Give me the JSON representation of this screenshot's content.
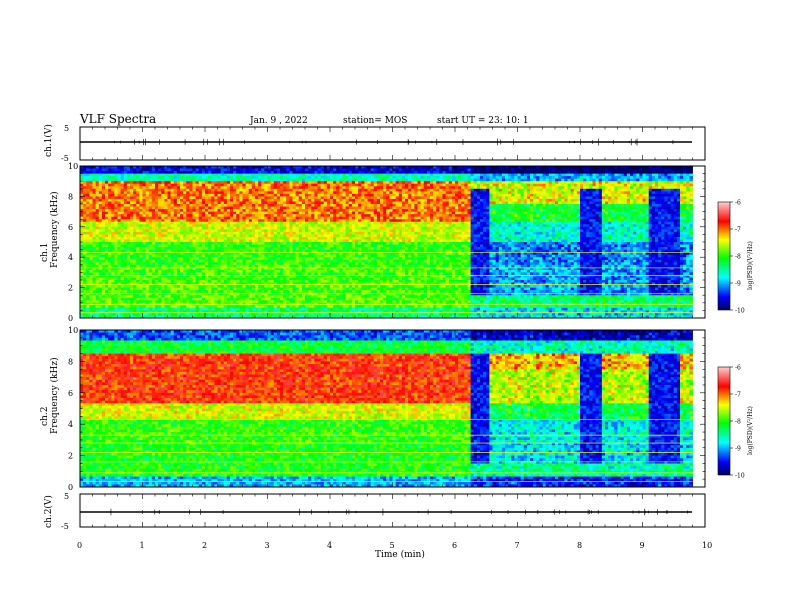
{
  "header": {
    "title": "VLF Spectra",
    "date": "Jan. 9 , 2022",
    "station": "station= MOS",
    "start_ut": "start UT = 23: 10: 1"
  },
  "axes": {
    "x_label": "Time (min)",
    "ch1_wave_label": "ch.1(V)",
    "ch2_wave_label": "ch.2(V)",
    "ch1_spec_label": "ch.1",
    "ch2_spec_label": "ch.2",
    "freq_label": "Frequency (kHz)",
    "colorbar_label": "log(PSD)(V²/Hz)"
  },
  "chart_data": [
    {
      "type": "line",
      "panel": "ch.1 waveform",
      "ylabel": "ch.1(V)",
      "xlim": [
        0,
        10
      ],
      "ylim": [
        -5,
        5
      ],
      "yticks": [
        5,
        -5
      ],
      "series": [
        {
          "values_description_constant": 0
        }
      ]
    },
    {
      "type": "heatmap",
      "panel": "ch.1 spectrogram",
      "ylabel": "Frequency (kHz)",
      "xlim": [
        0,
        10
      ],
      "ylim": [
        0,
        10
      ],
      "xticks": [
        0,
        1,
        2,
        3,
        4,
        5,
        6,
        7,
        8,
        9,
        10
      ],
      "yticks": [
        0,
        2,
        4,
        6,
        8,
        10
      ],
      "data_end_min": 9.8,
      "colorbar": {
        "range": [
          -10,
          -6
        ],
        "ticks": [
          -6,
          -7,
          -8,
          -9,
          -10
        ]
      }
    },
    {
      "type": "heatmap",
      "panel": "ch.2 spectrogram",
      "ylabel": "Frequency (kHz)",
      "xlim": [
        0,
        10
      ],
      "ylim": [
        0,
        10
      ],
      "xticks": [
        0,
        1,
        2,
        3,
        4,
        5,
        6,
        7,
        8,
        9,
        10
      ],
      "yticks": [
        0,
        2,
        4,
        6,
        8,
        10
      ],
      "data_end_min": 9.8,
      "colorbar": {
        "range": [
          -10,
          -6
        ],
        "ticks": [
          -6,
          -7,
          -8,
          -9,
          -10
        ]
      }
    },
    {
      "type": "line",
      "panel": "ch.2 waveform",
      "ylabel": "ch.2(V)",
      "xlim": [
        0,
        10
      ],
      "ylim": [
        -5,
        5
      ],
      "yticks": [
        5,
        -5
      ],
      "series": [
        {
          "values_description_constant": 0
        }
      ]
    }
  ],
  "colors": {
    "scale": [
      "#000060",
      "#0000ff",
      "#00ffff",
      "#00ff00",
      "#ffff00",
      "#ff0000",
      "#ffb0b0"
    ]
  }
}
